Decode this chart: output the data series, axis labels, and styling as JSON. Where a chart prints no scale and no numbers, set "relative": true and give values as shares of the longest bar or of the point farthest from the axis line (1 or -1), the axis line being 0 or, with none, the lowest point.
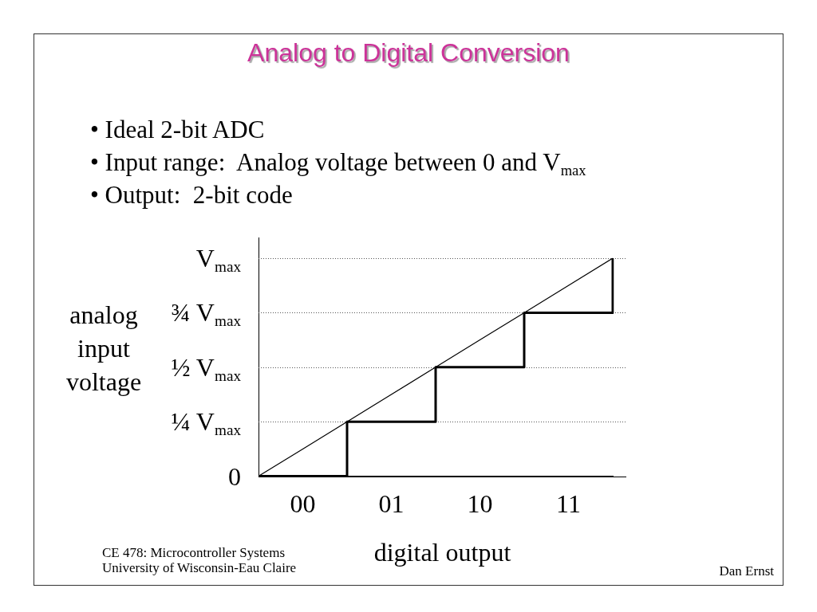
{
  "chart_data": {
    "type": "step",
    "title": "Analog to Digital Conversion",
    "xlabel": "digital output",
    "ylabel": "analog input voltage",
    "annotations": [
      "• Ideal 2-bit ADC",
      "• Input range:  Analog voltage between 0 and V$_{max}$",
      "• Output:  2-bit code",
      "CE 478: Microcontroller Systems",
      "University of Wisconsin-Eau Claire",
      "Dan Ernst"
    ],
    "categories": [
      null,
      "00",
      null,
      "01",
      null,
      "10",
      null,
      "11",
      null
    ],
    "series": [
      {
        "type": "line",
        "color": "#000000",
        "values": [
          0,
          0.125,
          0.25,
          0.375,
          0.5,
          0.625,
          0.75,
          0.875,
          1
        ]
      },
      {
        "color": "#000000",
        "values": [
          0,
          0,
          0.25,
          0.25,
          0.5,
          0.5,
          0.75,
          0.75,
          1
        ]
      }
    ],
    "relative": true,
    "ref_lines": [
      {
        "axis": "y",
        "value": 0,
        "label": "0",
        "color": "#000000",
        "line_style": "solid"
      },
      {
        "axis": "y",
        "value": 0.25,
        "label": "¼ V$_{max}$",
        "color": "#555555",
        "line_style": "dotted"
      },
      {
        "axis": "y",
        "value": 0.5,
        "label": "½ V$_{max}$",
        "color": "#555555",
        "line_style": "dotted"
      },
      {
        "axis": "y",
        "value": 0.75,
        "label": "¾ V$_{max}$",
        "color": "#555555",
        "line_style": "dotted"
      },
      {
        "axis": "y",
        "value": 1,
        "label": "V$_{max}$",
        "color": "#555555",
        "line_style": "dotted"
      }
    ],
    "marker": "none"
  }
}
